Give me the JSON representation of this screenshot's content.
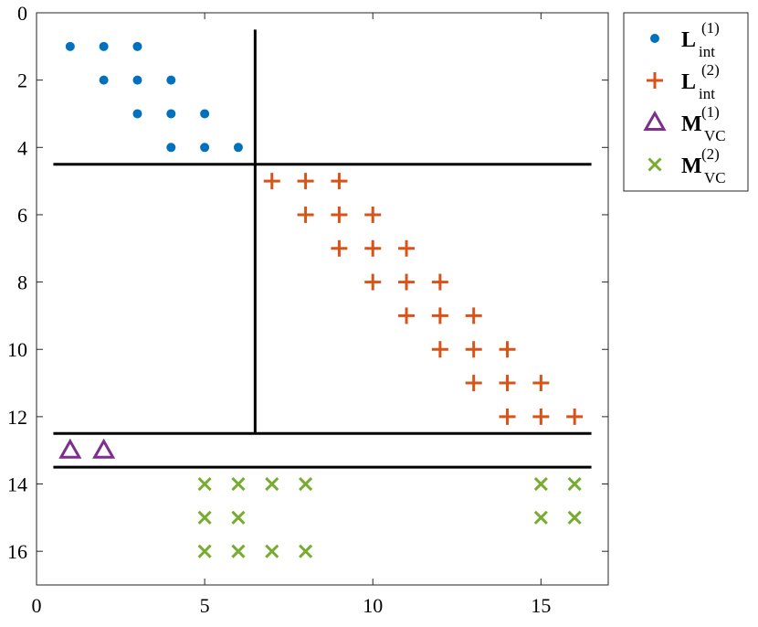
{
  "chart_data": {
    "type": "scatter",
    "xlim": [
      0,
      17
    ],
    "ylim": [
      0,
      17
    ],
    "y_reversed": true,
    "x_ticks": [
      0,
      5,
      10,
      15
    ],
    "y_ticks": [
      0,
      2,
      4,
      6,
      8,
      10,
      12,
      14,
      16
    ],
    "grid": false,
    "legend_position": "outside-top-right",
    "series": [
      {
        "key": "L_int_1",
        "label_main": "L",
        "label_sub": "int",
        "label_sup": "(1)",
        "marker": "dot",
        "color": "#0072BD",
        "points": [
          [
            1,
            1
          ],
          [
            2,
            1
          ],
          [
            3,
            1
          ],
          [
            2,
            2
          ],
          [
            3,
            2
          ],
          [
            4,
            2
          ],
          [
            3,
            3
          ],
          [
            4,
            3
          ],
          [
            5,
            3
          ],
          [
            4,
            4
          ],
          [
            5,
            4
          ],
          [
            6,
            4
          ]
        ]
      },
      {
        "key": "L_int_2",
        "label_main": "L",
        "label_sub": "int",
        "label_sup": "(2)",
        "marker": "plus",
        "color": "#D95319",
        "points": [
          [
            7,
            5
          ],
          [
            8,
            5
          ],
          [
            9,
            5
          ],
          [
            8,
            6
          ],
          [
            9,
            6
          ],
          [
            10,
            6
          ],
          [
            9,
            7
          ],
          [
            10,
            7
          ],
          [
            11,
            7
          ],
          [
            10,
            8
          ],
          [
            11,
            8
          ],
          [
            12,
            8
          ],
          [
            11,
            9
          ],
          [
            12,
            9
          ],
          [
            13,
            9
          ],
          [
            12,
            10
          ],
          [
            13,
            10
          ],
          [
            14,
            10
          ],
          [
            13,
            11
          ],
          [
            14,
            11
          ],
          [
            15,
            11
          ],
          [
            14,
            12
          ],
          [
            15,
            12
          ],
          [
            16,
            12
          ]
        ]
      },
      {
        "key": "M_VC_1",
        "label_main": "M",
        "label_sub": "VC",
        "label_sup": "(1)",
        "marker": "triangle",
        "color": "#7E2F8E",
        "points": [
          [
            1,
            13
          ],
          [
            2,
            13
          ]
        ]
      },
      {
        "key": "M_VC_2",
        "label_main": "M",
        "label_sub": "VC",
        "label_sup": "(2)",
        "marker": "cross",
        "color": "#77AC30",
        "points": [
          [
            5,
            14
          ],
          [
            6,
            14
          ],
          [
            7,
            14
          ],
          [
            8,
            14
          ],
          [
            15,
            14
          ],
          [
            16,
            14
          ],
          [
            5,
            15
          ],
          [
            6,
            15
          ],
          [
            15,
            15
          ],
          [
            16,
            15
          ],
          [
            5,
            16
          ],
          [
            6,
            16
          ],
          [
            7,
            16
          ],
          [
            8,
            16
          ]
        ]
      }
    ],
    "lines": [
      {
        "x1": 0.5,
        "y1": 4.5,
        "x2": 16.5,
        "y2": 4.5
      },
      {
        "x1": 6.5,
        "y1": 0.5,
        "x2": 6.5,
        "y2": 12.5
      },
      {
        "x1": 0.5,
        "y1": 12.5,
        "x2": 16.5,
        "y2": 12.5
      },
      {
        "x1": 0.5,
        "y1": 13.5,
        "x2": 16.5,
        "y2": 13.5
      }
    ]
  }
}
